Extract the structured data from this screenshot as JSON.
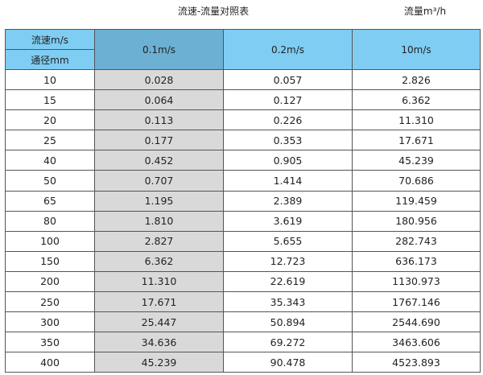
{
  "title": "流速-流量对照表",
  "unit_label": "流量m³/h",
  "colors": {
    "header": "#7fcdf3",
    "header_highlight": "#6cb0d3",
    "highlight_column": "#d9d9d9"
  },
  "table": {
    "corner_top": "流速m/s",
    "corner_bottom": "通径mm",
    "columns": [
      "0.1m/s",
      "0.2m/s",
      "10m/s"
    ],
    "rows": [
      [
        "10",
        "0.028",
        "0.057",
        "2.826"
      ],
      [
        "15",
        "0.064",
        "0.127",
        "6.362"
      ],
      [
        "20",
        "0.113",
        "0.226",
        "11.310"
      ],
      [
        "25",
        "0.177",
        "0.353",
        "17.671"
      ],
      [
        "40",
        "0.452",
        "0.905",
        "45.239"
      ],
      [
        "50",
        "0.707",
        "1.414",
        "70.686"
      ],
      [
        "65",
        "1.195",
        "2.389",
        "119.459"
      ],
      [
        "80",
        "1.810",
        "3.619",
        "180.956"
      ],
      [
        "100",
        "2.827",
        "5.655",
        "282.743"
      ],
      [
        "150",
        "6.362",
        "12.723",
        "636.173"
      ],
      [
        "200",
        "11.310",
        "22.619",
        "1130.973"
      ],
      [
        "250",
        "17.671",
        "35.343",
        "1767.146"
      ],
      [
        "300",
        "25.447",
        "50.894",
        "2544.690"
      ],
      [
        "350",
        "34.636",
        "69.272",
        "3463.606"
      ],
      [
        "400",
        "45.239",
        "90.478",
        "4523.893"
      ]
    ]
  }
}
